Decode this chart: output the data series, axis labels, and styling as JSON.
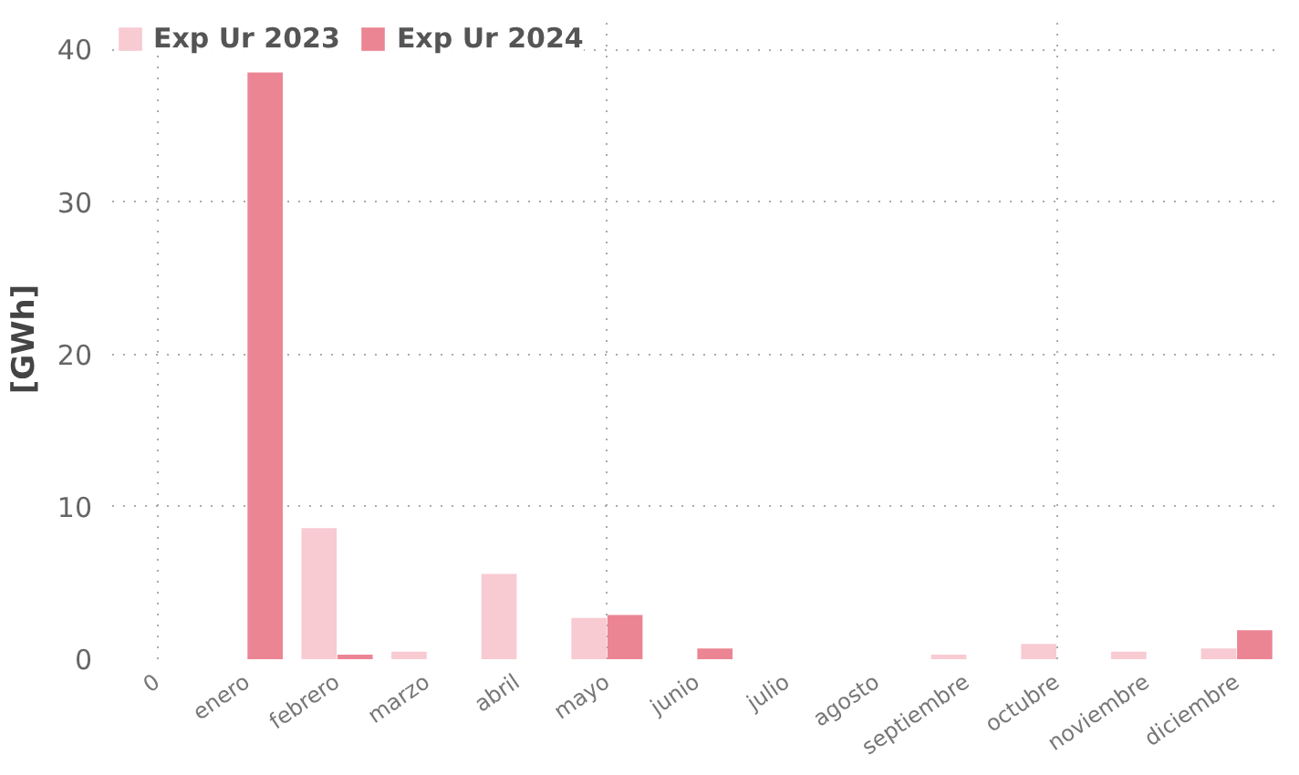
{
  "chart_data": {
    "type": "bar",
    "ylabel": "[GWh]",
    "categories": [
      "0",
      "enero",
      "febrero",
      "marzo",
      "abril",
      "mayo",
      "junio",
      "julio",
      "agosto",
      "septiembre",
      "octubre",
      "noviembre",
      "diciembre"
    ],
    "series": [
      {
        "name": "Exp Ur 2023",
        "color": "#f8cad2",
        "values": [
          null,
          null,
          8.6,
          0.5,
          5.6,
          2.7,
          null,
          null,
          null,
          0.3,
          1.0,
          0.5,
          0.7
        ]
      },
      {
        "name": "Exp Ur 2024",
        "color": "#ec8593",
        "values": [
          null,
          38.5,
          0.3,
          null,
          null,
          2.9,
          0.7,
          null,
          null,
          null,
          null,
          null,
          1.9
        ]
      }
    ],
    "ylim": [
      0,
      42
    ],
    "yticks": [
      0,
      10,
      20,
      30,
      40
    ],
    "grid": true,
    "legend": "top left"
  }
}
